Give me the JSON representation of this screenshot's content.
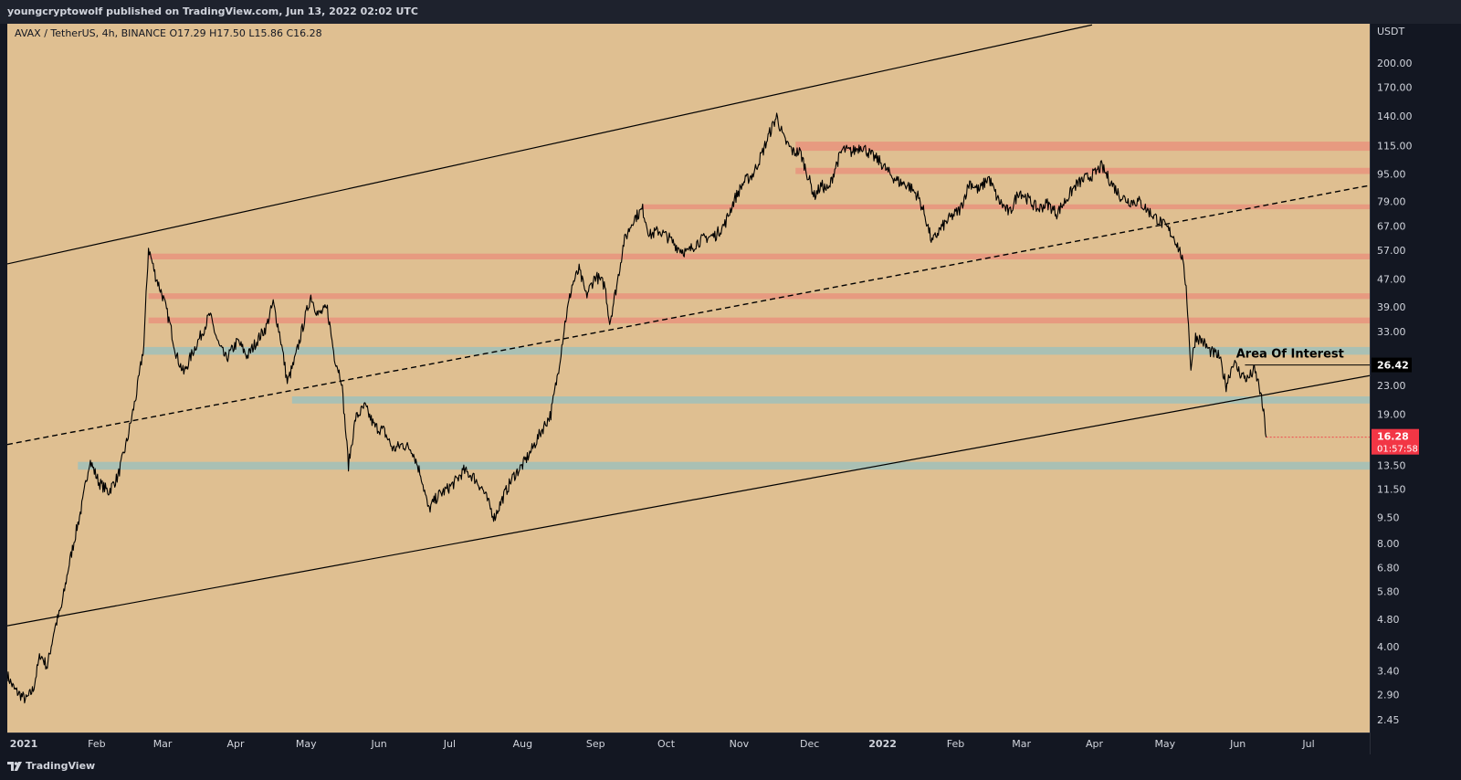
{
  "header": {
    "publish_line": "youngcryptowolf published on TradingView.com, Jun 13, 2022 02:02 UTC"
  },
  "footer": {
    "brand": "TradingView",
    "logo_icon": "tradingview-logo-icon"
  },
  "chart_data": {
    "type": "candlestick",
    "symbol_line": "AVAX / TetherUS, 4h, BINANCE  O17.29  H17.50  L15.86  C16.28",
    "y_unit": "USDT",
    "y_scale": "log",
    "ylim": [
      2.25,
      260
    ],
    "x_range": [
      "2020-12-25",
      "2022-07-27"
    ],
    "y_ticks": [
      200,
      170,
      140,
      115,
      95,
      79,
      67,
      57,
      47,
      39,
      33,
      27,
      23,
      19,
      16,
      13.5,
      11.5,
      9.5,
      8,
      6.8,
      5.8,
      4.8,
      4,
      3.4,
      2.9,
      2.45
    ],
    "y_tick_labels": [
      "200.00",
      "170.00",
      "140.00",
      "115.00",
      "95.00",
      "79.00",
      "67.00",
      "57.00",
      "47.00",
      "39.00",
      "33.00",
      "",
      "23.00",
      "19.00",
      "",
      "13.50",
      "11.50",
      "9.50",
      "8.00",
      "6.80",
      "5.80",
      "4.80",
      "4.00",
      "3.40",
      "2.90",
      "2.45"
    ],
    "x_ticks": [
      {
        "date": "2021-01-01",
        "label": "2021",
        "bold": true
      },
      {
        "date": "2021-02-01",
        "label": "Feb"
      },
      {
        "date": "2021-03-01",
        "label": "Mar"
      },
      {
        "date": "2021-04-01",
        "label": "Apr"
      },
      {
        "date": "2021-05-01",
        "label": "May"
      },
      {
        "date": "2021-06-01",
        "label": "Jun"
      },
      {
        "date": "2021-07-01",
        "label": "Jul"
      },
      {
        "date": "2021-08-01",
        "label": "Aug"
      },
      {
        "date": "2021-09-01",
        "label": "Sep"
      },
      {
        "date": "2021-10-01",
        "label": "Oct"
      },
      {
        "date": "2021-11-01",
        "label": "Nov"
      },
      {
        "date": "2021-12-01",
        "label": "Dec"
      },
      {
        "date": "2022-01-01",
        "label": "2022",
        "bold": true
      },
      {
        "date": "2022-02-01",
        "label": "Feb"
      },
      {
        "date": "2022-03-01",
        "label": "Mar"
      },
      {
        "date": "2022-04-01",
        "label": "Apr"
      },
      {
        "date": "2022-05-01",
        "label": "May"
      },
      {
        "date": "2022-06-01",
        "label": "Jun"
      },
      {
        "date": "2022-07-01",
        "label": "Jul"
      }
    ],
    "price_path": [
      [
        "2020-12-25",
        3.3
      ],
      [
        "2020-12-28",
        3.0
      ],
      [
        "2021-01-02",
        2.8
      ],
      [
        "2021-01-05",
        3.0
      ],
      [
        "2021-01-08",
        3.8
      ],
      [
        "2021-01-11",
        3.5
      ],
      [
        "2021-01-14",
        4.5
      ],
      [
        "2021-01-17",
        5.2
      ],
      [
        "2021-01-20",
        6.8
      ],
      [
        "2021-01-23",
        8.5
      ],
      [
        "2021-01-26",
        10.5
      ],
      [
        "2021-01-29",
        14.0
      ],
      [
        "2021-02-02",
        12.0
      ],
      [
        "2021-02-06",
        11.3
      ],
      [
        "2021-02-10",
        12.5
      ],
      [
        "2021-02-14",
        16.0
      ],
      [
        "2021-02-18",
        22.0
      ],
      [
        "2021-02-21",
        30.0
      ],
      [
        "2021-02-23",
        58.0
      ],
      [
        "2021-02-26",
        48.0
      ],
      [
        "2021-03-01",
        42.0
      ],
      [
        "2021-03-04",
        35.0
      ],
      [
        "2021-03-07",
        28.0
      ],
      [
        "2021-03-10",
        25.0
      ],
      [
        "2021-03-14",
        29.0
      ],
      [
        "2021-03-18",
        33.0
      ],
      [
        "2021-03-21",
        37.0
      ],
      [
        "2021-03-25",
        30.0
      ],
      [
        "2021-03-28",
        27.5
      ],
      [
        "2021-04-02",
        31.0
      ],
      [
        "2021-04-06",
        28.0
      ],
      [
        "2021-04-10",
        31.0
      ],
      [
        "2021-04-14",
        34.0
      ],
      [
        "2021-04-17",
        40.0
      ],
      [
        "2021-04-20",
        32.0
      ],
      [
        "2021-04-23",
        23.5
      ],
      [
        "2021-04-26",
        27.0
      ],
      [
        "2021-04-30",
        35.0
      ],
      [
        "2021-05-03",
        42.0
      ],
      [
        "2021-05-06",
        37.0
      ],
      [
        "2021-05-10",
        38.5
      ],
      [
        "2021-05-13",
        28.0
      ],
      [
        "2021-05-16",
        24.0
      ],
      [
        "2021-05-19",
        13.5
      ],
      [
        "2021-05-22",
        18.5
      ],
      [
        "2021-05-26",
        20.0
      ],
      [
        "2021-05-30",
        17.5
      ],
      [
        "2021-06-03",
        17.0
      ],
      [
        "2021-06-07",
        15.0
      ],
      [
        "2021-06-11",
        15.5
      ],
      [
        "2021-06-15",
        15.0
      ],
      [
        "2021-06-19",
        12.5
      ],
      [
        "2021-06-22",
        10.0
      ],
      [
        "2021-06-26",
        11.0
      ],
      [
        "2021-06-30",
        11.5
      ],
      [
        "2021-07-03",
        12.0
      ],
      [
        "2021-07-07",
        13.0
      ],
      [
        "2021-07-11",
        12.5
      ],
      [
        "2021-07-15",
        11.5
      ],
      [
        "2021-07-20",
        9.5
      ],
      [
        "2021-07-24",
        11.0
      ],
      [
        "2021-07-28",
        12.5
      ],
      [
        "2021-08-01",
        13.5
      ],
      [
        "2021-08-05",
        15.0
      ],
      [
        "2021-08-09",
        17.0
      ],
      [
        "2021-08-13",
        19.0
      ],
      [
        "2021-08-16",
        25.0
      ],
      [
        "2021-08-19",
        35.0
      ],
      [
        "2021-08-22",
        45.0
      ],
      [
        "2021-08-25",
        50.0
      ],
      [
        "2021-08-28",
        42.0
      ],
      [
        "2021-09-01",
        48.0
      ],
      [
        "2021-09-05",
        45.0
      ],
      [
        "2021-09-07",
        35.0
      ],
      [
        "2021-09-10",
        45.0
      ],
      [
        "2021-09-13",
        60.0
      ],
      [
        "2021-09-17",
        70.0
      ],
      [
        "2021-09-21",
        75.0
      ],
      [
        "2021-09-24",
        63.0
      ],
      [
        "2021-09-28",
        65.0
      ],
      [
        "2021-10-02",
        62.0
      ],
      [
        "2021-10-06",
        58.0
      ],
      [
        "2021-10-10",
        56.0
      ],
      [
        "2021-10-14",
        60.0
      ],
      [
        "2021-10-18",
        62.0
      ],
      [
        "2021-10-22",
        63.0
      ],
      [
        "2021-10-26",
        68.0
      ],
      [
        "2021-10-30",
        80.0
      ],
      [
        "2021-11-03",
        90.0
      ],
      [
        "2021-11-07",
        95.0
      ],
      [
        "2021-11-11",
        110.0
      ],
      [
        "2021-11-14",
        125.0
      ],
      [
        "2021-11-17",
        140.0
      ],
      [
        "2021-11-20",
        120.0
      ],
      [
        "2021-11-24",
        110.0
      ],
      [
        "2021-11-27",
        110.0
      ],
      [
        "2021-11-30",
        95.0
      ],
      [
        "2021-12-03",
        82.0
      ],
      [
        "2021-12-06",
        88.0
      ],
      [
        "2021-12-09",
        85.0
      ],
      [
        "2021-12-12",
        100.0
      ],
      [
        "2021-12-15",
        112.0
      ],
      [
        "2021-12-19",
        110.0
      ],
      [
        "2021-12-23",
        115.0
      ],
      [
        "2021-12-27",
        108.0
      ],
      [
        "2021-12-31",
        103.0
      ],
      [
        "2022-01-04",
        95.0
      ],
      [
        "2022-01-08",
        90.0
      ],
      [
        "2022-01-12",
        88.0
      ],
      [
        "2022-01-16",
        82.0
      ],
      [
        "2022-01-19",
        72.0
      ],
      [
        "2022-01-22",
        60.0
      ],
      [
        "2022-01-25",
        65.0
      ],
      [
        "2022-01-29",
        70.0
      ],
      [
        "2022-02-03",
        75.0
      ],
      [
        "2022-02-07",
        90.0
      ],
      [
        "2022-02-11",
        85.0
      ],
      [
        "2022-02-15",
        93.0
      ],
      [
        "2022-02-19",
        80.0
      ],
      [
        "2022-02-24",
        73.0
      ],
      [
        "2022-02-28",
        85.0
      ],
      [
        "2022-03-04",
        80.0
      ],
      [
        "2022-03-08",
        75.0
      ],
      [
        "2022-03-12",
        78.0
      ],
      [
        "2022-03-16",
        73.0
      ],
      [
        "2022-03-20",
        80.0
      ],
      [
        "2022-03-24",
        88.0
      ],
      [
        "2022-03-28",
        92.0
      ],
      [
        "2022-04-01",
        95.0
      ],
      [
        "2022-04-04",
        100.0
      ],
      [
        "2022-04-08",
        90.0
      ],
      [
        "2022-04-12",
        82.0
      ],
      [
        "2022-04-16",
        79.0
      ],
      [
        "2022-04-20",
        79.0
      ],
      [
        "2022-04-24",
        74.0
      ],
      [
        "2022-04-28",
        70.0
      ],
      [
        "2022-05-02",
        66.0
      ],
      [
        "2022-05-05",
        62.0
      ],
      [
        "2022-05-08",
        55.0
      ],
      [
        "2022-05-10",
        45.0
      ],
      [
        "2022-05-12",
        26.0
      ],
      [
        "2022-05-14",
        32.0
      ],
      [
        "2022-05-17",
        31.0
      ],
      [
        "2022-05-20",
        29.0
      ],
      [
        "2022-05-24",
        28.0
      ],
      [
        "2022-05-27",
        23.0
      ],
      [
        "2022-05-30",
        27.0
      ],
      [
        "2022-06-02",
        25.0
      ],
      [
        "2022-06-05",
        24.0
      ],
      [
        "2022-06-08",
        25.5
      ],
      [
        "2022-06-10",
        23.0
      ],
      [
        "2022-06-12",
        19.0
      ],
      [
        "2022-06-13",
        16.28
      ]
    ],
    "trendlines": [
      {
        "kind": "upper-channel",
        "style": "solid",
        "from": [
          "2020-12-25",
          52.0
        ],
        "to": [
          "2022-03-31",
          258.0
        ]
      },
      {
        "kind": "lower-channel",
        "style": "solid",
        "from": [
          "2020-12-25",
          4.6
        ],
        "to": [
          "2022-07-27",
          24.6
        ]
      },
      {
        "kind": "mid-channel",
        "style": "dashed",
        "from": [
          "2020-12-25",
          15.5
        ],
        "to": [
          "2022-07-27",
          88.0
        ]
      }
    ],
    "zones": [
      {
        "color": "red",
        "low": 111,
        "high": 118,
        "from": "2021-11-25"
      },
      {
        "color": "red",
        "low": 95,
        "high": 99,
        "from": "2021-11-25"
      },
      {
        "color": "red",
        "low": 75,
        "high": 77.5,
        "from": "2021-09-21"
      },
      {
        "color": "red",
        "low": 53.6,
        "high": 55.7,
        "from": "2021-02-23"
      },
      {
        "color": "red",
        "low": 41.1,
        "high": 42.7,
        "from": "2021-02-23"
      },
      {
        "color": "red",
        "low": 34.9,
        "high": 36.3,
        "from": "2021-02-23"
      },
      {
        "color": "blue",
        "low": 28.3,
        "high": 29.8,
        "from": "2021-02-21"
      },
      {
        "color": "blue",
        "low": 20.4,
        "high": 21.4,
        "from": "2021-04-25"
      },
      {
        "color": "blue",
        "low": 13.1,
        "high": 13.8,
        "from": "2021-01-24"
      }
    ],
    "annotation": {
      "text": "Area Of Interest",
      "price": 26.42
    },
    "price_labels": [
      {
        "value": "26.42",
        "price": 26.42,
        "style": "black"
      },
      {
        "value": "16.28",
        "sub": "01:57:58",
        "price": 16.28,
        "style": "red"
      }
    ],
    "colors": {
      "background": "#dfbf91",
      "red_zone": "#e79a80",
      "blue_zone": "#a9c0b4",
      "candles": "#000000",
      "current_price": "#f23645"
    }
  }
}
